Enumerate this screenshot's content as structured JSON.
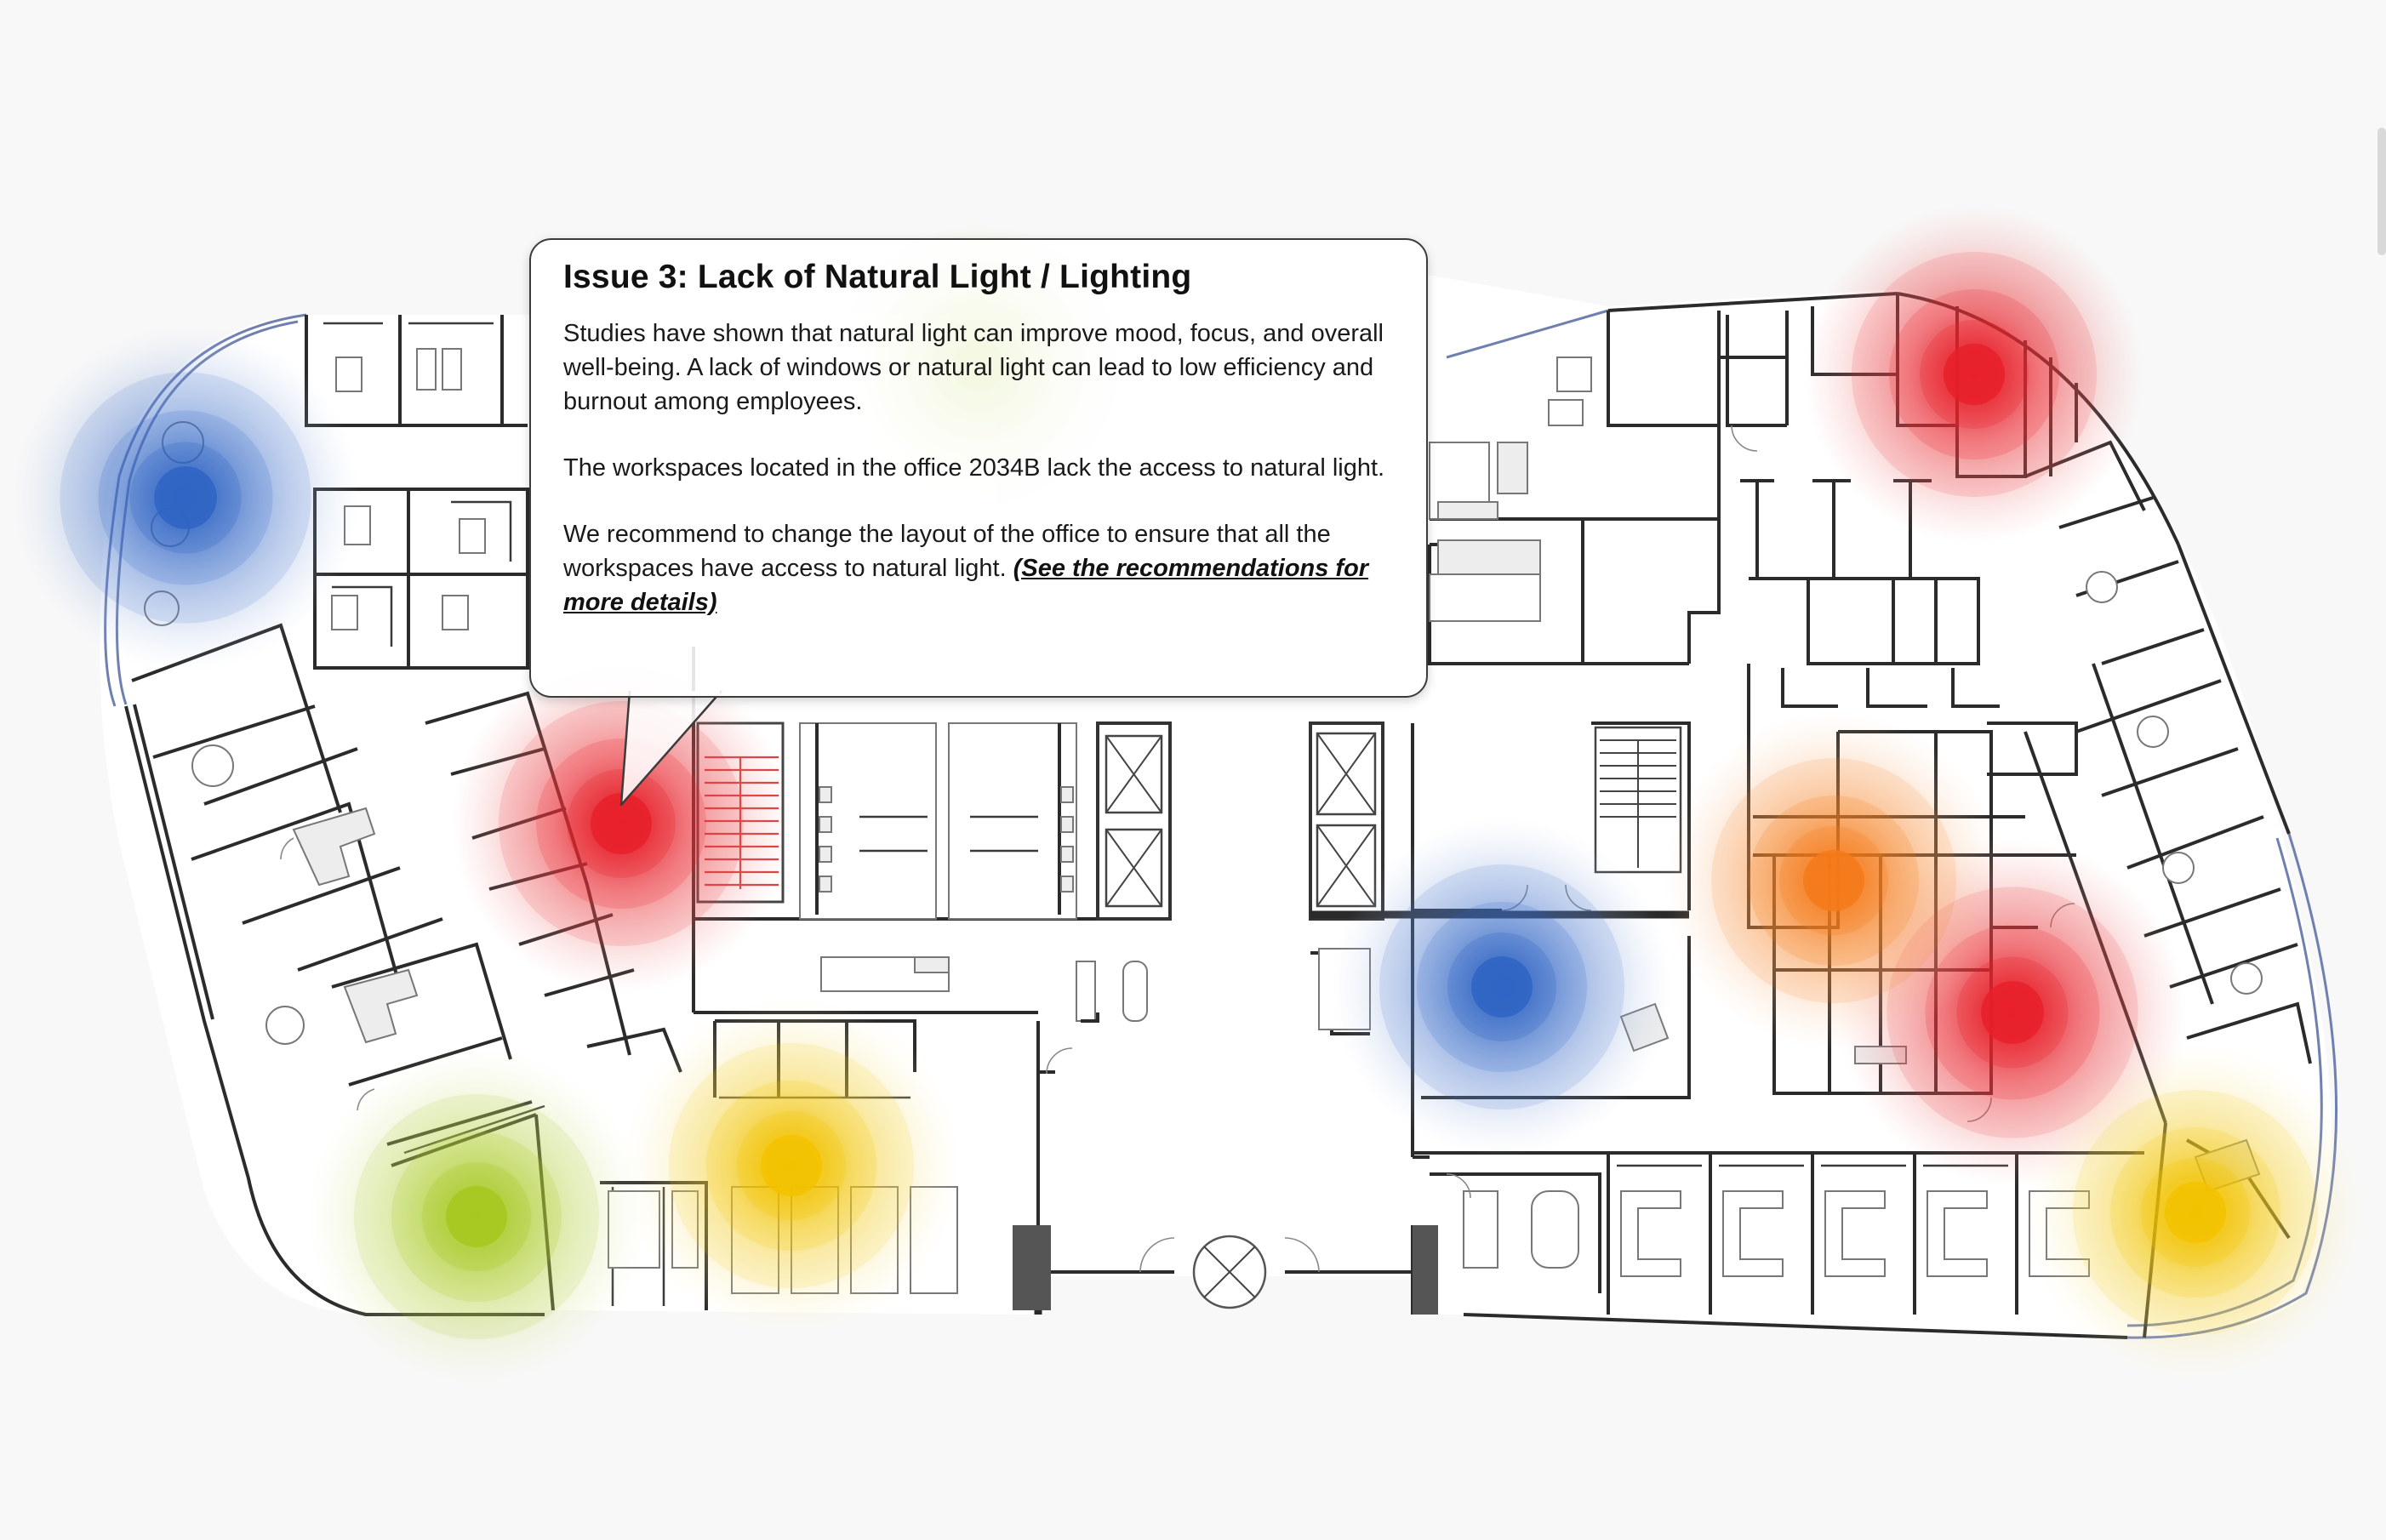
{
  "callout": {
    "title": "Issue 3: Lack of Natural Light / Lighting",
    "paragraph_1": "Studies have shown that natural light can improve mood, focus, and overall well-being. A lack of windows or natural light can lead to low efficiency and burnout among employees.",
    "paragraph_2": "The workspaces located in the office 2034B lack the access to natural light.",
    "paragraph_3_text": "We recommend to change the layout of the office to ensure that all the workspaces have access to natural light.",
    "paragraph_3_link": "(See the recommendations for more details)"
  },
  "heatmap": {
    "levels": [
      "red",
      "orange",
      "yellow",
      "green",
      "blue"
    ],
    "colors": {
      "red": "#e8202a",
      "orange": "#f57a1a",
      "yellow": "#f2c200",
      "green": "#a6c81e",
      "blue": "#2f64c4"
    },
    "hotspot_levels": [
      "blue",
      "red",
      "yellow",
      "green",
      "green",
      "red",
      "red",
      "orange",
      "blue",
      "red",
      "yellow"
    ]
  }
}
